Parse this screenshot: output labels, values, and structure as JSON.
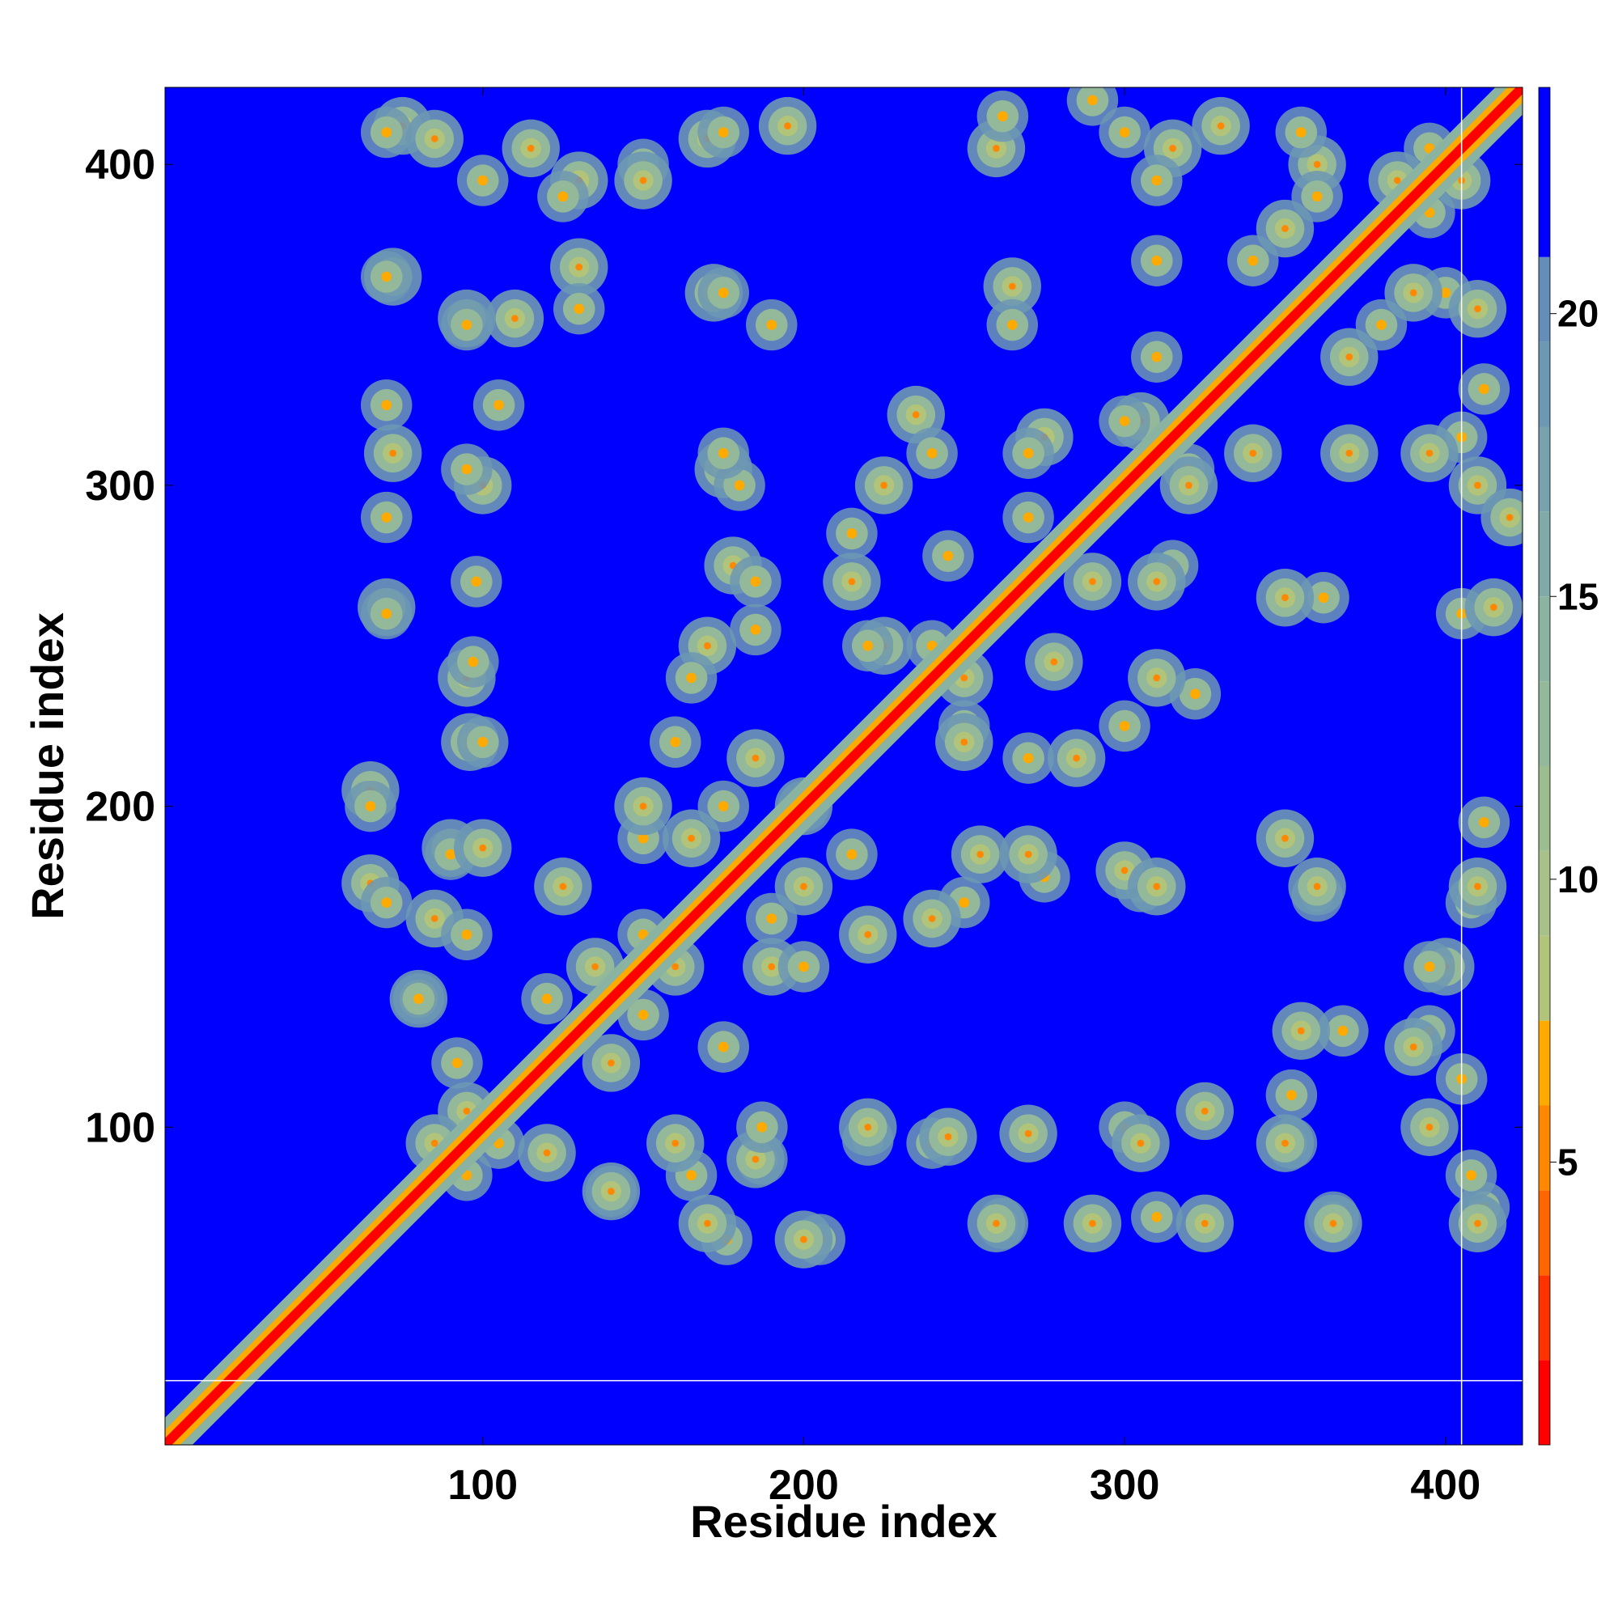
{
  "chart_data": {
    "type": "heatmap",
    "title": "",
    "xlabel": "Residue index",
    "ylabel": "Residue index",
    "xlim": [
      1,
      424
    ],
    "ylim": [
      1,
      424
    ],
    "x_ticks": [
      100,
      200,
      300,
      400
    ],
    "y_ticks": [
      100,
      200,
      300,
      400
    ],
    "x_tick_labels": [
      "100",
      "200",
      "300",
      "400"
    ],
    "y_tick_labels": [
      "100",
      "200",
      "300",
      "400"
    ],
    "n_residues": 424,
    "description": "",
    "colorbar": {
      "range": [
        0,
        24
      ],
      "ticks": [
        5,
        10,
        15,
        20
      ],
      "tick_labels": [
        "5",
        "10",
        "15",
        "20"
      ],
      "levels": [
        {
          "upper": 1.5,
          "color": "#ff0000"
        },
        {
          "upper": 3,
          "color": "#ff3300"
        },
        {
          "upper": 4.5,
          "color": "#ff6600"
        },
        {
          "upper": 6,
          "color": "#ff8800"
        },
        {
          "upper": 7.5,
          "color": "#ffaa00"
        },
        {
          "upper": 9,
          "color": "#b2c47a"
        },
        {
          "upper": 10.5,
          "color": "#a8c08a"
        },
        {
          "upper": 12,
          "color": "#9cbd90"
        },
        {
          "upper": 13.5,
          "color": "#93b89a"
        },
        {
          "upper": 15,
          "color": "#8ab3a2"
        },
        {
          "upper": 16.5,
          "color": "#80aaa8"
        },
        {
          "upper": 18,
          "color": "#77a2ae"
        },
        {
          "upper": 19.5,
          "color": "#6d98b3"
        },
        {
          "upper": 21,
          "color": "#648eb8"
        },
        {
          "upper": 24,
          "color": "#0000ff"
        }
      ]
    },
    "diagonal_width_residues": 3,
    "gap_lines": {
      "x": [
        405
      ],
      "y": [
        21
      ]
    },
    "contact_blobs": [
      {
        "x": 75,
        "y": 412
      },
      {
        "x": 85,
        "y": 408
      },
      {
        "x": 130,
        "y": 395
      },
      {
        "x": 170,
        "y": 408
      },
      {
        "x": 195,
        "y": 412
      },
      {
        "x": 72,
        "y": 365
      },
      {
        "x": 130,
        "y": 368
      },
      {
        "x": 110,
        "y": 352
      },
      {
        "x": 95,
        "y": 352
      },
      {
        "x": 172,
        "y": 360
      },
      {
        "x": 260,
        "y": 405
      },
      {
        "x": 265,
        "y": 362
      },
      {
        "x": 315,
        "y": 405
      },
      {
        "x": 330,
        "y": 412
      },
      {
        "x": 72,
        "y": 310
      },
      {
        "x": 100,
        "y": 300
      },
      {
        "x": 70,
        "y": 262
      },
      {
        "x": 95,
        "y": 240
      },
      {
        "x": 96,
        "y": 220
      },
      {
        "x": 175,
        "y": 305
      },
      {
        "x": 178,
        "y": 275
      },
      {
        "x": 170,
        "y": 250
      },
      {
        "x": 235,
        "y": 322
      },
      {
        "x": 225,
        "y": 300
      },
      {
        "x": 215,
        "y": 270
      },
      {
        "x": 225,
        "y": 250
      },
      {
        "x": 275,
        "y": 315
      },
      {
        "x": 290,
        "y": 270
      },
      {
        "x": 278,
        "y": 245
      },
      {
        "x": 285,
        "y": 215
      },
      {
        "x": 250,
        "y": 220
      },
      {
        "x": 305,
        "y": 320
      },
      {
        "x": 320,
        "y": 300
      },
      {
        "x": 310,
        "y": 270
      },
      {
        "x": 340,
        "y": 310
      },
      {
        "x": 350,
        "y": 265
      },
      {
        "x": 360,
        "y": 400
      },
      {
        "x": 385,
        "y": 395
      },
      {
        "x": 350,
        "y": 380
      },
      {
        "x": 390,
        "y": 360
      },
      {
        "x": 370,
        "y": 340
      },
      {
        "x": 410,
        "y": 355
      },
      {
        "x": 395,
        "y": 310
      },
      {
        "x": 370,
        "y": 310
      },
      {
        "x": 415,
        "y": 262
      },
      {
        "x": 410,
        "y": 300
      },
      {
        "x": 405,
        "y": 395
      },
      {
        "x": 65,
        "y": 205
      },
      {
        "x": 65,
        "y": 176
      },
      {
        "x": 90,
        "y": 187
      },
      {
        "x": 85,
        "y": 165
      },
      {
        "x": 80,
        "y": 140
      },
      {
        "x": 95,
        "y": 105
      },
      {
        "x": 85,
        "y": 95
      },
      {
        "x": 120,
        "y": 92
      },
      {
        "x": 140,
        "y": 80
      },
      {
        "x": 170,
        "y": 70
      },
      {
        "x": 200,
        "y": 65
      },
      {
        "x": 160,
        "y": 95
      },
      {
        "x": 185,
        "y": 90
      },
      {
        "x": 140,
        "y": 120
      },
      {
        "x": 160,
        "y": 150
      },
      {
        "x": 190,
        "y": 150
      },
      {
        "x": 200,
        "y": 175
      },
      {
        "x": 165,
        "y": 190
      },
      {
        "x": 150,
        "y": 200
      },
      {
        "x": 185,
        "y": 215
      },
      {
        "x": 200,
        "y": 200
      },
      {
        "x": 125,
        "y": 175
      },
      {
        "x": 135,
        "y": 150
      },
      {
        "x": 220,
        "y": 160
      },
      {
        "x": 220,
        "y": 100
      },
      {
        "x": 245,
        "y": 97
      },
      {
        "x": 270,
        "y": 98
      },
      {
        "x": 260,
        "y": 70
      },
      {
        "x": 290,
        "y": 70
      },
      {
        "x": 255,
        "y": 185
      },
      {
        "x": 270,
        "y": 185
      },
      {
        "x": 300,
        "y": 180
      },
      {
        "x": 310,
        "y": 175
      },
      {
        "x": 325,
        "y": 70
      },
      {
        "x": 305,
        "y": 95
      },
      {
        "x": 350,
        "y": 95
      },
      {
        "x": 355,
        "y": 130
      },
      {
        "x": 365,
        "y": 70
      },
      {
        "x": 395,
        "y": 100
      },
      {
        "x": 390,
        "y": 125
      },
      {
        "x": 400,
        "y": 150
      },
      {
        "x": 410,
        "y": 70
      },
      {
        "x": 410,
        "y": 175
      },
      {
        "x": 360,
        "y": 175
      },
      {
        "x": 350,
        "y": 190
      },
      {
        "x": 240,
        "y": 165
      },
      {
        "x": 250,
        "y": 240
      },
      {
        "x": 310,
        "y": 240
      },
      {
        "x": 325,
        "y": 105
      },
      {
        "x": 420,
        "y": 290
      },
      {
        "x": 115,
        "y": 405
      },
      {
        "x": 150,
        "y": 395
      },
      {
        "x": 100,
        "y": 187
      }
    ]
  }
}
